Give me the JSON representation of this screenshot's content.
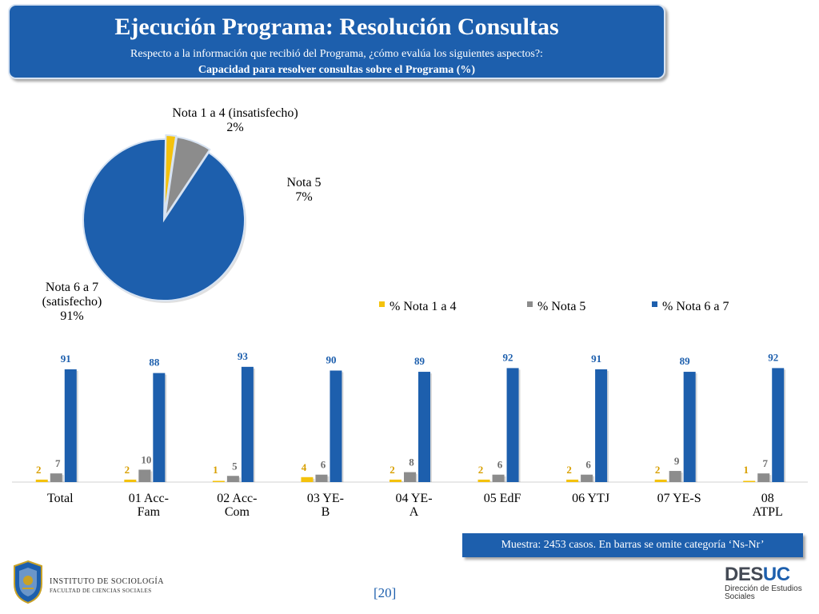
{
  "header": {
    "title": "Ejecución Programa: Resolución Consultas",
    "subtitle": "Respecto a la información que recibió del Programa, ¿cómo evalúa los siguientes aspectos?:",
    "subtitle_bold": "Capacidad para resolver consultas sobre el Programa (%)"
  },
  "colors": {
    "yellow": "#f4c20d",
    "gray": "#8c8c8c",
    "blue": "#1d5fad"
  },
  "chart_data": [
    {
      "type": "pie",
      "slices": [
        {
          "label": [
            "Nota 1 a 4 (insatisfecho)",
            "2%"
          ],
          "value": 2,
          "color": "#f4c20d"
        },
        {
          "label": [
            "Nota 5",
            "7%"
          ],
          "value": 7,
          "color": "#8c8c8c"
        },
        {
          "label": [
            "Nota 6 a 7",
            "(satisfecho)",
            "91%"
          ],
          "value": 91,
          "color": "#1d5fad"
        }
      ]
    },
    {
      "type": "bar",
      "categories": [
        [
          "Total"
        ],
        [
          "01 Acc-",
          "Fam"
        ],
        [
          "02 Acc-",
          "Com"
        ],
        [
          "03 YE-",
          "B"
        ],
        [
          "04 YE-",
          "A"
        ],
        [
          "05 EdF"
        ],
        [
          "06 YTJ"
        ],
        [
          "07 YE-S"
        ],
        [
          "08",
          "ATPL"
        ]
      ],
      "series": [
        {
          "name": "% Nota 1 a 4",
          "values": [
            2,
            2,
            1,
            4,
            2,
            2,
            2,
            2,
            1
          ],
          "color": "#f4c20d"
        },
        {
          "name": "% Nota 5",
          "values": [
            7,
            10,
            5,
            6,
            8,
            6,
            6,
            9,
            7
          ],
          "color": "#8c8c8c"
        },
        {
          "name": "% Nota 6 a 7",
          "values": [
            91,
            88,
            93,
            90,
            89,
            92,
            91,
            89,
            92
          ],
          "color": "#1d5fad"
        }
      ],
      "ylim": [
        0,
        100
      ],
      "legend": "top"
    }
  ],
  "footer": {
    "note": "Muestra: 2453 casos. En barras se omite categoría ‘Ns-Nr’",
    "page": "[20]",
    "inst_name": "INSTITUTO DE SOCIOLOGÍA",
    "inst_faculty": "FACULTAD DE CIENCIAS SOCIALES",
    "desuc_a": "DES",
    "desuc_b": "UC",
    "desuc_sub1": "Dirección de Estudios",
    "desuc_sub2": "Sociales"
  }
}
